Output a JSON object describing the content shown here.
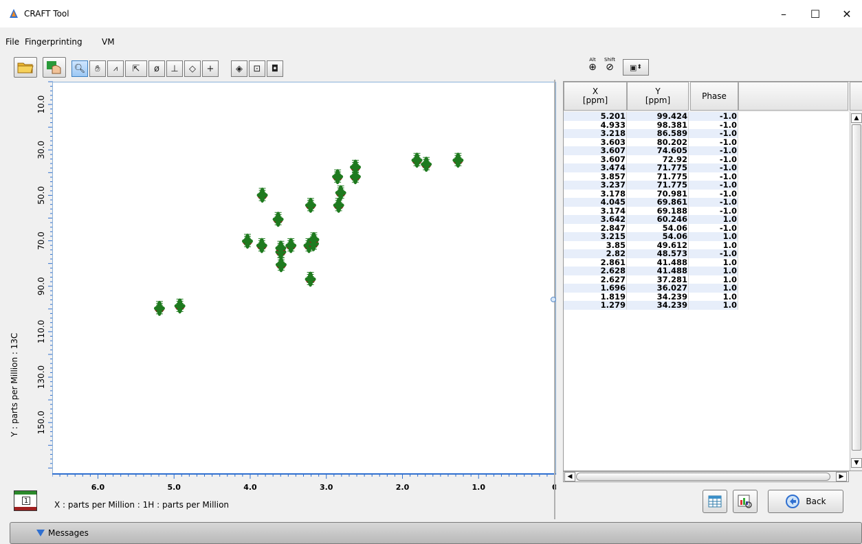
{
  "window": {
    "title": "CRAFT Tool",
    "controls": {
      "minimize": "–",
      "maximize": "☐",
      "close": "✕"
    }
  },
  "menu": [
    "File",
    "Fingerprinting",
    "VM"
  ],
  "toolbar": {
    "buttons": [
      "open-folder",
      "fingerprint",
      "zoom",
      "pan",
      "peak-pick",
      "select-pointer",
      "phase",
      "baseline",
      "eraser",
      "crosshair",
      "diamond",
      "box-point",
      "box-square"
    ],
    "modifier_alt": "Alt",
    "modifier_shift": "Shift"
  },
  "plot": {
    "ylabel": "Y : parts per Million : 13C",
    "xlabel": "X : parts per Million : 1H : parts per Million",
    "layer_number": "1",
    "colors": {
      "positive": "#1f7a1f",
      "negative": "#9b1a1a"
    }
  },
  "chart_data": {
    "type": "scatter",
    "xlim": [
      6.6,
      0
    ],
    "ylim": [
      0,
      172
    ],
    "xticks": [
      "6.0",
      "5.0",
      "4.0",
      "3.0",
      "2.0",
      "1.0",
      "0"
    ],
    "yticks": [
      "10.0",
      "30.0",
      "50.0",
      "70.0",
      "90.0",
      "110.0",
      "130.0",
      "150.0"
    ],
    "points": [
      {
        "x": 5.201,
        "y": 99.424
      },
      {
        "x": 4.933,
        "y": 98.381
      },
      {
        "x": 3.218,
        "y": 86.589
      },
      {
        "x": 3.603,
        "y": 80.202
      },
      {
        "x": 3.607,
        "y": 74.605
      },
      {
        "x": 3.607,
        "y": 72.92
      },
      {
        "x": 3.474,
        "y": 71.775
      },
      {
        "x": 3.857,
        "y": 71.775
      },
      {
        "x": 3.237,
        "y": 71.775
      },
      {
        "x": 3.178,
        "y": 70.981
      },
      {
        "x": 4.045,
        "y": 69.861
      },
      {
        "x": 3.174,
        "y": 69.188
      },
      {
        "x": 3.642,
        "y": 60.246
      },
      {
        "x": 2.847,
        "y": 54.06
      },
      {
        "x": 3.215,
        "y": 54.06
      },
      {
        "x": 3.85,
        "y": 49.612
      },
      {
        "x": 2.82,
        "y": 48.573
      },
      {
        "x": 2.861,
        "y": 41.488
      },
      {
        "x": 2.628,
        "y": 41.488
      },
      {
        "x": 2.627,
        "y": 37.281
      },
      {
        "x": 1.696,
        "y": 36.027
      },
      {
        "x": 1.819,
        "y": 34.239
      },
      {
        "x": 1.279,
        "y": 34.239
      }
    ]
  },
  "table": {
    "headers": [
      "X\n[ppm]",
      "Y\n[ppm]",
      "Phase"
    ],
    "rows": [
      [
        "5.201",
        "99.424",
        "-1.0"
      ],
      [
        "4.933",
        "98.381",
        "-1.0"
      ],
      [
        "3.218",
        "86.589",
        "-1.0"
      ],
      [
        "3.603",
        "80.202",
        "-1.0"
      ],
      [
        "3.607",
        "74.605",
        "-1.0"
      ],
      [
        "3.607",
        "72.92",
        "-1.0"
      ],
      [
        "3.474",
        "71.775",
        "-1.0"
      ],
      [
        "3.857",
        "71.775",
        "-1.0"
      ],
      [
        "3.237",
        "71.775",
        "-1.0"
      ],
      [
        "3.178",
        "70.981",
        "-1.0"
      ],
      [
        "4.045",
        "69.861",
        "-1.0"
      ],
      [
        "3.174",
        "69.188",
        "-1.0"
      ],
      [
        "3.642",
        "60.246",
        "1.0"
      ],
      [
        "2.847",
        "54.06",
        "-1.0"
      ],
      [
        "3.215",
        "54.06",
        "1.0"
      ],
      [
        "3.85",
        "49.612",
        "1.0"
      ],
      [
        "2.82",
        "48.573",
        "-1.0"
      ],
      [
        "2.861",
        "41.488",
        "1.0"
      ],
      [
        "2.628",
        "41.488",
        "1.0"
      ],
      [
        "2.627",
        "37.281",
        "1.0"
      ],
      [
        "1.696",
        "36.027",
        "1.0"
      ],
      [
        "1.819",
        "34.239",
        "1.0"
      ],
      [
        "1.279",
        "34.239",
        "1.0"
      ]
    ]
  },
  "buttons": {
    "back": "Back"
  },
  "messages": {
    "label": "Messages"
  }
}
